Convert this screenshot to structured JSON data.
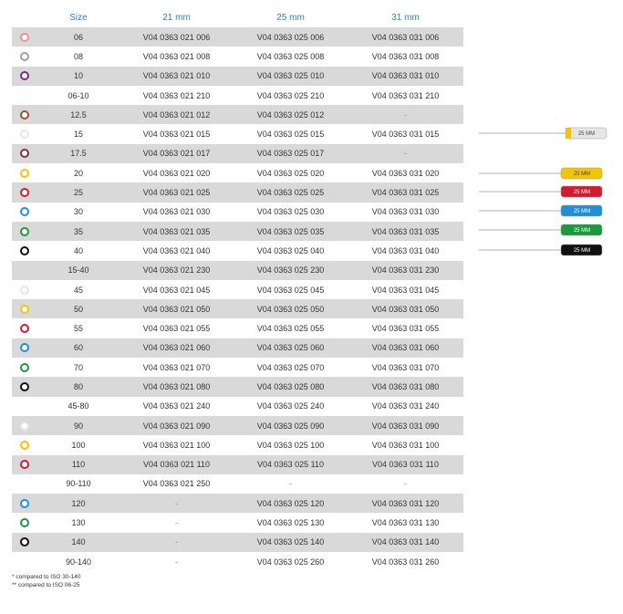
{
  "table": {
    "headers": [
      "",
      "Size",
      "21 mm",
      "25 mm",
      "31 mm"
    ],
    "rows": [
      {
        "color": "#e68fa8",
        "size": "06",
        "c21": "V04 0363 021 006",
        "c25": "V04 0363 025 006",
        "c31": "V04 0363 031 006",
        "shade": true
      },
      {
        "color": "#a0a0a0",
        "size": "08",
        "c21": "V04 0363 021 008",
        "c25": "V04 0363 025 008",
        "c31": "V04 0363 031 008",
        "shade": false
      },
      {
        "color": "#7a2a8c",
        "size": "10",
        "c21": "V04 0363 021 010",
        "c25": "V04 0363 025 010",
        "c31": "V04 0363 031 010",
        "shade": true
      },
      {
        "color": "",
        "size": "06-10",
        "c21": "V04 0363 021 210",
        "c25": "V04 0363 025 210",
        "c31": "V04 0363 031 210",
        "shade": false
      },
      {
        "color": "#a0522d",
        "size": "12.5",
        "c21": "V04 0363 021 012",
        "c25": "V04 0363 025 012",
        "c31": "-",
        "shade": true
      },
      {
        "color": "#e6e6e6",
        "size": "15",
        "c21": "V04 0363 021 015",
        "c25": "V04 0363 025 015",
        "c31": "V04 0363 031 015",
        "shade": false
      },
      {
        "color": "#7a3340",
        "size": "17.5",
        "c21": "V04 0363 021 017",
        "c25": "V04 0363 025 017",
        "c31": "-",
        "shade": true
      },
      {
        "color": "#f2c500",
        "size": "20",
        "c21": "V04 0363 021 020",
        "c25": "V04 0363 025 020",
        "c31": "V04 0363 031 020",
        "shade": false
      },
      {
        "color": "#d7192e",
        "size": "25",
        "c21": "V04 0363 021 025",
        "c25": "V04 0363 025 025",
        "c31": "V04 0363 031 025",
        "shade": true
      },
      {
        "color": "#1f8fd6",
        "size": "30",
        "c21": "V04 0363 021 030",
        "c25": "V04 0363 025 030",
        "c31": "V04 0363 031 030",
        "shade": false
      },
      {
        "color": "#1a9a3c",
        "size": "35",
        "c21": "V04 0363 021 035",
        "c25": "V04 0363 025 035",
        "c31": "V04 0363 031 035",
        "shade": true
      },
      {
        "color": "#111111",
        "size": "40",
        "c21": "V04 0363 021 040",
        "c25": "V04 0363 025 040",
        "c31": "V04 0363 031 040",
        "shade": false
      },
      {
        "color": "",
        "size": "15-40",
        "c21": "V04 0363 021 230",
        "c25": "V04 0363 025 230",
        "c31": "V04 0363 031 230",
        "shade": true
      },
      {
        "color": "#e6e6e6",
        "size": "45",
        "c21": "V04 0363 021 045",
        "c25": "V04 0363 025 045",
        "c31": "V04 0363 031 045",
        "shade": false
      },
      {
        "color": "#f2c500",
        "size": "50",
        "c21": "V04 0363 021 050",
        "c25": "V04 0363 025 050",
        "c31": "V04 0363 031 050",
        "shade": true
      },
      {
        "color": "#d7192e",
        "size": "55",
        "c21": "V04 0363 021 055",
        "c25": "V04 0363 025 055",
        "c31": "V04 0363 031 055",
        "shade": false
      },
      {
        "color": "#1f8fd6",
        "size": "60",
        "c21": "V04 0363 021 060",
        "c25": "V04 0363 025 060",
        "c31": "V04 0363 031 060",
        "shade": true
      },
      {
        "color": "#1a9a3c",
        "size": "70",
        "c21": "V04 0363 021 070",
        "c25": "V04 0363 025 070",
        "c31": "V04 0363 031 070",
        "shade": false
      },
      {
        "color": "#111111",
        "size": "80",
        "c21": "V04 0363 021 080",
        "c25": "V04 0363 025 080",
        "c31": "V04 0363 031 080",
        "shade": true
      },
      {
        "color": "",
        "size": "45-80",
        "c21": "V04 0363 021 240",
        "c25": "V04 0363 025 240",
        "c31": "V04 0363 031 240",
        "shade": false
      },
      {
        "color": "#e6e6e6",
        "size": "90",
        "c21": "V04 0363 021 090",
        "c25": "V04 0363 025 090",
        "c31": "V04 0363 031 090",
        "shade": true
      },
      {
        "color": "#f2c500",
        "size": "100",
        "c21": "V04 0363 021 100",
        "c25": "V04 0363 025 100",
        "c31": "V04 0363 031 100",
        "shade": false
      },
      {
        "color": "#d7192e",
        "size": "110",
        "c21": "V04 0363 021 110",
        "c25": "V04 0363 025 110",
        "c31": "V04 0363 031 110",
        "shade": true
      },
      {
        "color": "",
        "size": "90-110",
        "c21": "V04 0363 021 250",
        "c25": "-",
        "c31": "-",
        "shade": false
      },
      {
        "color": "#1f8fd6",
        "size": "120",
        "c21": "-",
        "c25": "V04 0363 025 120",
        "c31": "V04 0363 031 120",
        "shade": true
      },
      {
        "color": "#1a9a3c",
        "size": "130",
        "c21": "-",
        "c25": "V04 0363 025 130",
        "c31": "V04 0363 031 130",
        "shade": false
      },
      {
        "color": "#111111",
        "size": "140",
        "c21": "-",
        "c25": "V04 0363 025 140",
        "c31": "V04 0363 031 140",
        "shade": true
      },
      {
        "color": "",
        "size": "90-140",
        "c21": "-",
        "c25": "V04 0363 025 260",
        "c31": "V04 0363 031 260",
        "shade": false
      }
    ]
  },
  "notes": [
    "* compared to ISO 30-140",
    "** compared to ISO 06-25"
  ],
  "files": [
    {
      "handle": "#e6e6e6",
      "label": "25 MM"
    },
    {
      "handle": "#f2c500",
      "label": "25 MM"
    },
    {
      "handle": "#d7192e",
      "label": "25 MM"
    },
    {
      "handle": "#1f8fd6",
      "label": "25 MM"
    },
    {
      "handle": "#1a9a3c",
      "label": "25 MM"
    },
    {
      "handle": "#111111",
      "label": "25 MM"
    }
  ]
}
